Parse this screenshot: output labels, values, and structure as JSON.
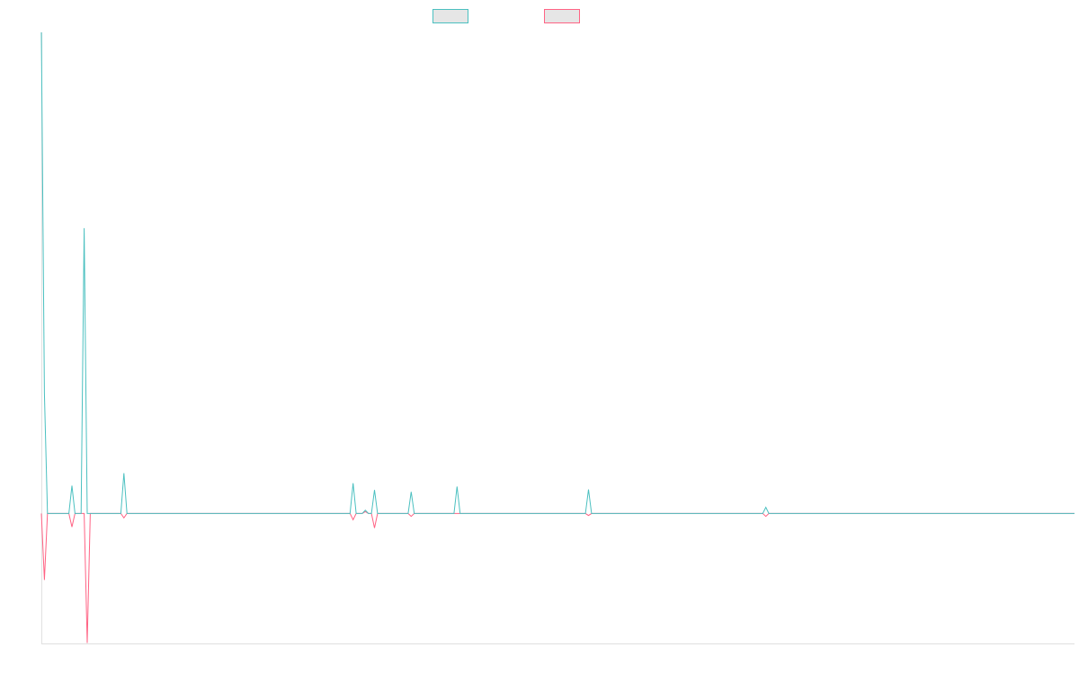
{
  "chart_data": {
    "type": "line",
    "title": "",
    "xlabel": "",
    "ylabel": "",
    "xlim": [
      0,
      338
    ],
    "ylim": [
      -27,
      100
    ],
    "grid": false,
    "legend_placement": "top",
    "baseline": 0,
    "series": [
      {
        "color": "#4bc0c0",
        "legend_fill": "#e6e6e6",
        "points": [
          [
            0,
            100
          ],
          [
            1,
            25
          ],
          [
            2,
            0
          ],
          [
            9,
            0
          ],
          [
            10,
            5.8
          ],
          [
            11,
            0
          ],
          [
            13,
            0
          ],
          [
            14,
            59.3
          ],
          [
            15,
            0
          ],
          [
            26,
            0
          ],
          [
            27,
            8.4
          ],
          [
            28,
            0
          ],
          [
            101,
            0
          ],
          [
            102,
            6.3
          ],
          [
            103,
            0
          ],
          [
            105,
            0
          ],
          [
            106,
            0.7
          ],
          [
            107,
            0
          ],
          [
            108,
            0
          ],
          [
            109,
            4.9
          ],
          [
            110,
            0
          ],
          [
            120,
            0
          ],
          [
            121,
            4.5
          ],
          [
            122,
            0
          ],
          [
            135,
            0
          ],
          [
            136,
            5.6
          ],
          [
            137,
            0
          ],
          [
            178,
            0
          ],
          [
            179,
            5
          ],
          [
            180,
            0
          ],
          [
            236,
            0
          ],
          [
            237,
            1.3
          ],
          [
            238,
            0
          ],
          [
            338,
            0
          ]
        ]
      },
      {
        "color": "#ff6384",
        "legend_fill": "#e6e6e6",
        "points": [
          [
            0,
            0
          ],
          [
            1,
            -13.8
          ],
          [
            2,
            0
          ],
          [
            9,
            0
          ],
          [
            10,
            -2.8
          ],
          [
            11,
            0
          ],
          [
            14,
            0
          ],
          [
            15,
            -26.9
          ],
          [
            16,
            0
          ],
          [
            26,
            0
          ],
          [
            27,
            -0.9
          ],
          [
            28,
            0
          ],
          [
            101,
            0
          ],
          [
            102,
            -1.3
          ],
          [
            103,
            0
          ],
          [
            105,
            0
          ],
          [
            106,
            0.4
          ],
          [
            107,
            0
          ],
          [
            108,
            0
          ],
          [
            109,
            -3
          ],
          [
            110,
            0
          ],
          [
            120,
            0
          ],
          [
            121,
            -0.6
          ],
          [
            122,
            0
          ],
          [
            178,
            0
          ],
          [
            179,
            -0.4
          ],
          [
            180,
            0
          ],
          [
            236,
            0
          ],
          [
            237,
            -0.6
          ],
          [
            238,
            0
          ],
          [
            338,
            0
          ]
        ]
      }
    ]
  }
}
